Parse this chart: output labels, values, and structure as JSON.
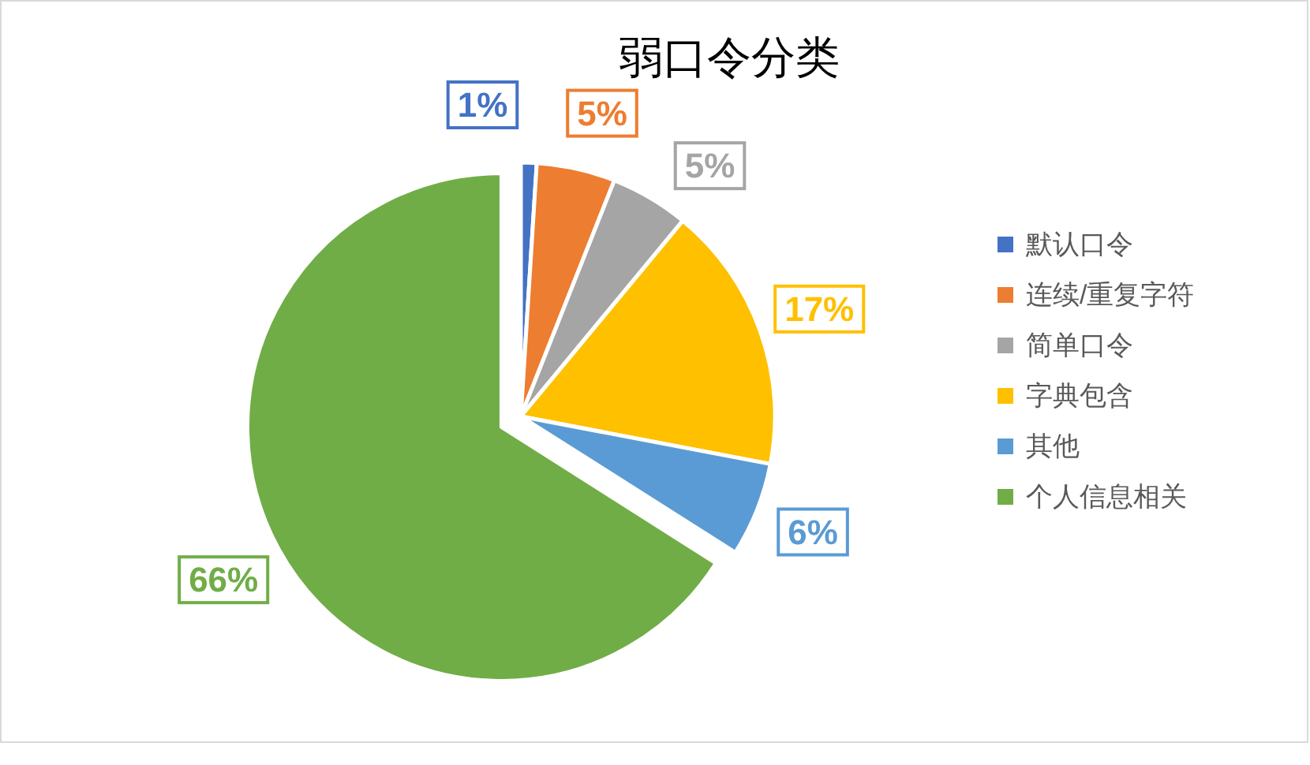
{
  "chart_data": {
    "type": "pie",
    "title": "弱口令分类",
    "categories": [
      "默认口令",
      "连续/重复字符",
      "简单口令",
      "字典包含",
      "其他",
      "个人信息相关"
    ],
    "values": [
      1,
      5,
      5,
      17,
      6,
      66
    ],
    "colors": [
      "#4472c4",
      "#ed7d31",
      "#a5a5a5",
      "#ffc000",
      "#5b9bd5",
      "#70ad47"
    ],
    "value_labels": [
      "1%",
      "5%",
      "5%",
      "17%",
      "6%",
      "66%"
    ],
    "legend": "right"
  }
}
